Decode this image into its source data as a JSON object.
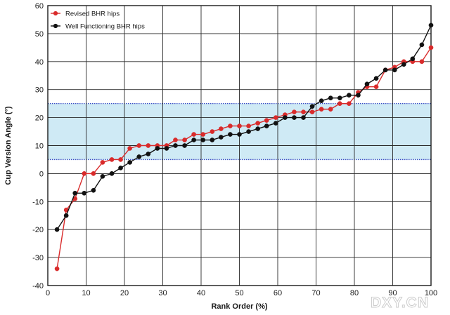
{
  "chart_data": {
    "type": "line",
    "xlabel": "Rank Order (%)",
    "ylabel": "Cup Version Angle (°)",
    "xlim": [
      0,
      100
    ],
    "ylim": [
      -40,
      60
    ],
    "x_ticks": [
      "0",
      "10",
      "20",
      "30",
      "40",
      "50",
      "60",
      "70",
      "80",
      "90",
      "100"
    ],
    "y_ticks": [
      "-40",
      "-30",
      "-20",
      "-10",
      "0",
      "10",
      "20",
      "30",
      "40",
      "50",
      "60"
    ],
    "grid": true,
    "legend_position": "top-left",
    "shaded_band": {
      "y_from": 5,
      "y_to": 25,
      "color": "#bfe3f2",
      "border_color": "#3a4fc4"
    },
    "series": [
      {
        "name": "Revised BHR hips",
        "color": "#d92b2b",
        "points": [
          [
            2.4,
            -34
          ],
          [
            4.8,
            -13
          ],
          [
            7.1,
            -9
          ],
          [
            9.5,
            0
          ],
          [
            11.9,
            0
          ],
          [
            14.3,
            4
          ],
          [
            16.7,
            5
          ],
          [
            19.0,
            5
          ],
          [
            21.4,
            9
          ],
          [
            23.8,
            10
          ],
          [
            26.2,
            10
          ],
          [
            28.6,
            10
          ],
          [
            31.0,
            10
          ],
          [
            33.3,
            12
          ],
          [
            35.7,
            12
          ],
          [
            38.1,
            14
          ],
          [
            40.5,
            14
          ],
          [
            42.9,
            15
          ],
          [
            45.2,
            16
          ],
          [
            47.6,
            17
          ],
          [
            50.0,
            17
          ],
          [
            52.4,
            17
          ],
          [
            54.8,
            18
          ],
          [
            57.1,
            19
          ],
          [
            59.5,
            20
          ],
          [
            61.9,
            21
          ],
          [
            64.3,
            22
          ],
          [
            66.7,
            22
          ],
          [
            69.0,
            22
          ],
          [
            71.4,
            23
          ],
          [
            73.8,
            23
          ],
          [
            76.2,
            25
          ],
          [
            78.6,
            25
          ],
          [
            81.0,
            29
          ],
          [
            83.3,
            31
          ],
          [
            85.7,
            31
          ],
          [
            88.1,
            37
          ],
          [
            90.5,
            38
          ],
          [
            92.9,
            40
          ],
          [
            95.2,
            40
          ],
          [
            97.6,
            40
          ],
          [
            100.0,
            45
          ]
        ]
      },
      {
        "name": "Well Functioning BHR hips",
        "color": "#111111",
        "points": [
          [
            2.4,
            -20
          ],
          [
            4.8,
            -15
          ],
          [
            7.1,
            -7
          ],
          [
            9.5,
            -7
          ],
          [
            11.9,
            -6
          ],
          [
            14.3,
            -1
          ],
          [
            16.7,
            0
          ],
          [
            19.0,
            2
          ],
          [
            21.4,
            4
          ],
          [
            23.8,
            6
          ],
          [
            26.2,
            7
          ],
          [
            28.6,
            9
          ],
          [
            31.0,
            9
          ],
          [
            33.3,
            10
          ],
          [
            35.7,
            10
          ],
          [
            38.1,
            12
          ],
          [
            40.5,
            12
          ],
          [
            42.9,
            12
          ],
          [
            45.2,
            13
          ],
          [
            47.6,
            14
          ],
          [
            50.0,
            14
          ],
          [
            52.4,
            15
          ],
          [
            54.8,
            16
          ],
          [
            57.1,
            17
          ],
          [
            59.5,
            18
          ],
          [
            61.9,
            20
          ],
          [
            64.3,
            20
          ],
          [
            66.7,
            20
          ],
          [
            69.0,
            24
          ],
          [
            71.4,
            26
          ],
          [
            73.8,
            27
          ],
          [
            76.2,
            27
          ],
          [
            78.6,
            28
          ],
          [
            81.0,
            28
          ],
          [
            83.3,
            32
          ],
          [
            85.7,
            34
          ],
          [
            88.1,
            37
          ],
          [
            90.5,
            37
          ],
          [
            92.9,
            39
          ],
          [
            95.2,
            41
          ],
          [
            97.6,
            46
          ],
          [
            100.0,
            53
          ]
        ]
      }
    ],
    "watermark": "DXY.CN"
  }
}
